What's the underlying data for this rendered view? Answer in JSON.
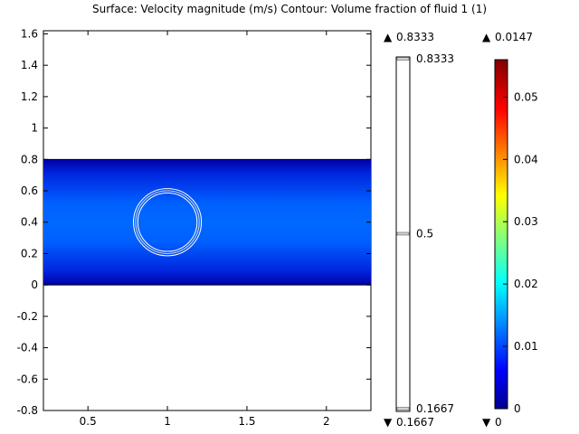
{
  "chart_data": {
    "type": "heatmap",
    "title": "Surface: Velocity magnitude (m/s)  Contour: Volume fraction of fluid 1 (1)",
    "xlim": [
      0.22,
      2.28
    ],
    "ylim": [
      -0.8,
      1.62
    ],
    "x_ticks": [
      "0.5",
      "1",
      "1.5",
      "2"
    ],
    "x_tick_values": [
      0.5,
      1,
      1.5,
      2
    ],
    "y_ticks": [
      "1.6",
      "1.4",
      "1.2",
      "1",
      "0.8",
      "0.6",
      "0.4",
      "0.2",
      "0",
      "-0.2",
      "-0.4",
      "-0.6",
      "-0.8"
    ],
    "y_tick_values": [
      1.6,
      1.4,
      1.2,
      1,
      0.8,
      0.6,
      0.4,
      0.2,
      0,
      -0.2,
      -0.4,
      -0.6,
      -0.8
    ],
    "domain": {
      "x_min": 0.22,
      "x_max": 2.28,
      "y_min": 0,
      "y_max": 0.8
    },
    "bubble": {
      "cx": 1,
      "cy": 0.4,
      "r": 0.2
    },
    "contour_legend": {
      "max_label": "0.8333",
      "min_label": "0.1667",
      "levels": [
        "0.8333",
        "0.5",
        "0.1667"
      ],
      "level_values": [
        0.8333,
        0.5,
        0.1667
      ],
      "range": [
        0.1667,
        0.8333
      ]
    },
    "surface_legend": {
      "max_label": "0.0147",
      "min_label": "0",
      "ticks": [
        "0.05",
        "0.04",
        "0.03",
        "0.02",
        "0.01",
        "0"
      ],
      "tick_values": [
        0.05,
        0.04,
        0.03,
        0.02,
        0.01,
        0
      ],
      "range": [
        0,
        0.056
      ]
    },
    "max_marker": "▲",
    "min_marker": "▼"
  }
}
